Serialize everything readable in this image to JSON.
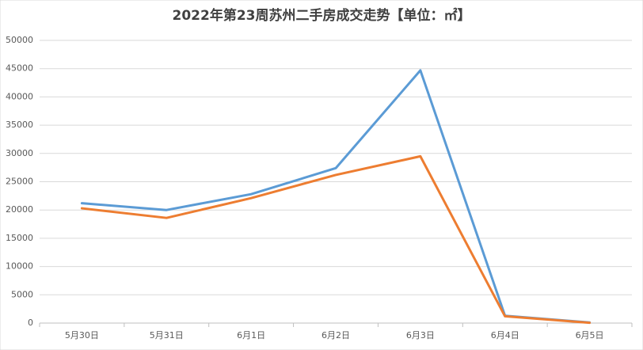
{
  "chart_data": {
    "type": "line",
    "title": "2022年第23周苏州二手房成交走势【单位：㎡】",
    "categories": [
      "5月30日",
      "5月31日",
      "6月1日",
      "6月2日",
      "6月3日",
      "6月4日",
      "6月5日"
    ],
    "series": [
      {
        "color": "#5b9bd5",
        "values": [
          21200,
          20000,
          22800,
          27400,
          44700,
          1300,
          100
        ]
      },
      {
        "color": "#ed7d31",
        "values": [
          20300,
          18600,
          22100,
          26200,
          29500,
          1200,
          50
        ]
      }
    ],
    "ylim": [
      0,
      50000
    ],
    "yticks": [
      0,
      5000,
      10000,
      15000,
      20000,
      25000,
      30000,
      35000,
      40000,
      45000,
      50000
    ],
    "grid": true
  }
}
